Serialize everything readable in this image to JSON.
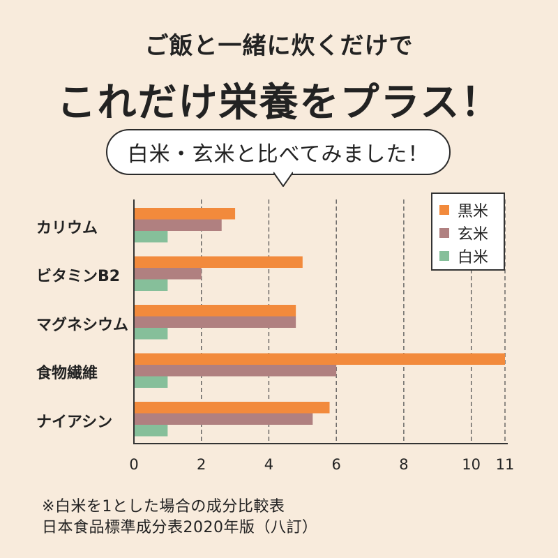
{
  "header": {
    "subtitle": "ご飯と一緒に炊くだけで",
    "title": "これだけ栄養をプラス！",
    "bubble": "白米・玄米と比べてみました！"
  },
  "chart_data": {
    "type": "bar",
    "orientation": "horizontal",
    "categories": [
      "カリウム",
      "ビタミンB2",
      "マグネシウム",
      "食物繊維",
      "ナイアシン"
    ],
    "series": [
      {
        "name": "黒米",
        "color": "#f28a3c",
        "values": [
          3.0,
          5.0,
          4.8,
          11.0,
          5.8
        ]
      },
      {
        "name": "玄米",
        "color": "#b08080",
        "values": [
          2.6,
          2.0,
          4.8,
          6.0,
          5.3
        ]
      },
      {
        "name": "白米",
        "color": "#86bf9a",
        "values": [
          1,
          1,
          1,
          1,
          1
        ]
      }
    ],
    "xlim": [
      0,
      11
    ],
    "xticks": [
      "0",
      "2",
      "4",
      "6",
      "8",
      "10",
      "11"
    ],
    "xtick_values": [
      0,
      2,
      4,
      6,
      8,
      10,
      11
    ],
    "grid": "vertical-dashed",
    "legend": "top-right"
  },
  "notes": {
    "line1": "※白米を1とした場合の成分比較表",
    "line2": "日本食品標準成分表2020年版（八訂）"
  }
}
